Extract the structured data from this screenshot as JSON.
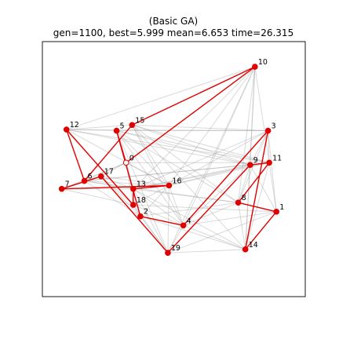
{
  "chart_data": {
    "type": "scatter",
    "title": "(Basic GA)",
    "subtitle": "gen=1100, best=5.999 mean=6.653 time=26.315",
    "axes_visible": false,
    "frame": "box",
    "xlim": [
      0,
      1
    ],
    "ylim": [
      0,
      1
    ],
    "colors": {
      "route": "#e00000",
      "node": "#e00000",
      "start_node_fill": "#ffffff",
      "candidate_edge": "#a0a0a0",
      "frame": "#000000"
    },
    "nodes": [
      {
        "id": 0,
        "label": "0",
        "x": 0.3,
        "y": 0.53
      },
      {
        "id": 1,
        "label": "1",
        "x": 0.93,
        "y": 0.315
      },
      {
        "id": 2,
        "label": "2",
        "x": 0.36,
        "y": 0.295
      },
      {
        "id": 3,
        "label": "3",
        "x": 0.895,
        "y": 0.67
      },
      {
        "id": 4,
        "label": "4",
        "x": 0.54,
        "y": 0.255
      },
      {
        "id": 5,
        "label": "5",
        "x": 0.26,
        "y": 0.67
      },
      {
        "id": 6,
        "label": "6",
        "x": 0.125,
        "y": 0.45
      },
      {
        "id": 7,
        "label": "7",
        "x": 0.03,
        "y": 0.415
      },
      {
        "id": 8,
        "label": "8",
        "x": 0.77,
        "y": 0.355
      },
      {
        "id": 9,
        "label": "9",
        "x": 0.82,
        "y": 0.52
      },
      {
        "id": 10,
        "label": "10",
        "x": 0.84,
        "y": 0.95
      },
      {
        "id": 11,
        "label": "11",
        "x": 0.9,
        "y": 0.53
      },
      {
        "id": 12,
        "label": "12",
        "x": 0.05,
        "y": 0.675
      },
      {
        "id": 13,
        "label": "13",
        "x": 0.33,
        "y": 0.415
      },
      {
        "id": 14,
        "label": "14",
        "x": 0.8,
        "y": 0.15
      },
      {
        "id": 15,
        "label": "15",
        "x": 0.325,
        "y": 0.695
      },
      {
        "id": 16,
        "label": "16",
        "x": 0.48,
        "y": 0.43
      },
      {
        "id": 17,
        "label": "17",
        "x": 0.195,
        "y": 0.47
      },
      {
        "id": 18,
        "label": "18",
        "x": 0.33,
        "y": 0.345
      },
      {
        "id": 19,
        "label": "19",
        "x": 0.475,
        "y": 0.135
      }
    ],
    "best_route": [
      0,
      5,
      2,
      4,
      3,
      14,
      1,
      8,
      11,
      9,
      19,
      17,
      7,
      16,
      13,
      18,
      12,
      6,
      15,
      10,
      0
    ],
    "candidate_edges": [
      [
        12,
        10
      ],
      [
        12,
        3
      ],
      [
        12,
        9
      ],
      [
        12,
        11
      ],
      [
        12,
        16
      ],
      [
        12,
        18
      ],
      [
        12,
        5
      ],
      [
        12,
        15
      ],
      [
        5,
        3
      ],
      [
        5,
        11
      ],
      [
        5,
        9
      ],
      [
        5,
        16
      ],
      [
        5,
        13
      ],
      [
        5,
        4
      ],
      [
        5,
        19
      ],
      [
        5,
        8
      ],
      [
        15,
        3
      ],
      [
        15,
        9
      ],
      [
        15,
        11
      ],
      [
        15,
        4
      ],
      [
        15,
        14
      ],
      [
        15,
        16
      ],
      [
        15,
        8
      ],
      [
        0,
        16
      ],
      [
        0,
        13
      ],
      [
        0,
        2
      ],
      [
        0,
        6
      ],
      [
        0,
        17
      ],
      [
        0,
        7
      ],
      [
        0,
        18
      ],
      [
        0,
        11
      ],
      [
        10,
        14
      ],
      [
        10,
        4
      ],
      [
        10,
        9
      ],
      [
        10,
        8
      ],
      [
        10,
        11
      ],
      [
        10,
        13
      ],
      [
        10,
        19
      ],
      [
        10,
        16
      ],
      [
        3,
        11
      ],
      [
        3,
        9
      ],
      [
        3,
        14
      ],
      [
        3,
        8
      ],
      [
        3,
        1
      ],
      [
        3,
        16
      ],
      [
        3,
        13
      ],
      [
        9,
        8
      ],
      [
        9,
        11
      ],
      [
        9,
        14
      ],
      [
        9,
        4
      ],
      [
        9,
        1
      ],
      [
        9,
        16
      ],
      [
        9,
        13
      ],
      [
        9,
        6
      ],
      [
        11,
        1
      ],
      [
        11,
        14
      ],
      [
        11,
        8
      ],
      [
        11,
        6
      ],
      [
        11,
        16
      ],
      [
        11,
        13
      ],
      [
        8,
        1
      ],
      [
        8,
        14
      ],
      [
        8,
        4
      ],
      [
        8,
        6
      ],
      [
        8,
        2
      ],
      [
        8,
        13
      ],
      [
        1,
        14
      ],
      [
        1,
        4
      ],
      [
        1,
        19
      ],
      [
        1,
        18
      ],
      [
        14,
        4
      ],
      [
        14,
        19
      ],
      [
        14,
        2
      ],
      [
        14,
        13
      ],
      [
        4,
        19
      ],
      [
        4,
        2
      ],
      [
        4,
        18
      ],
      [
        4,
        13
      ],
      [
        4,
        16
      ],
      [
        19,
        2
      ],
      [
        19,
        18
      ],
      [
        19,
        16
      ],
      [
        19,
        13
      ],
      [
        16,
        13
      ],
      [
        16,
        18
      ],
      [
        16,
        2
      ],
      [
        16,
        6
      ],
      [
        16,
        17
      ],
      [
        13,
        18
      ],
      [
        13,
        2
      ],
      [
        13,
        6
      ],
      [
        13,
        17
      ],
      [
        13,
        7
      ],
      [
        18,
        2
      ],
      [
        18,
        17
      ],
      [
        18,
        7
      ],
      [
        6,
        17
      ],
      [
        6,
        7
      ],
      [
        7,
        17
      ],
      [
        2,
        17
      ],
      [
        2,
        6
      ]
    ]
  }
}
